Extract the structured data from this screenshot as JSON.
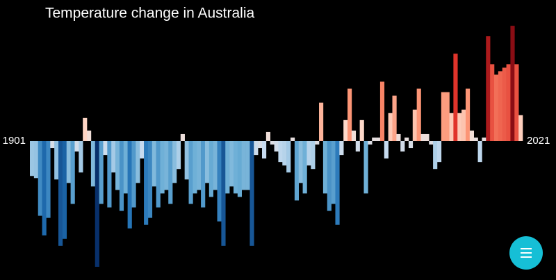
{
  "chart_data": {
    "type": "bar",
    "title": "Temperature change in Australia",
    "categories": [
      "1901",
      null,
      null,
      null,
      null,
      null,
      null,
      null,
      null,
      null,
      null,
      null,
      null,
      null,
      null,
      null,
      null,
      null,
      null,
      null,
      null,
      null,
      null,
      null,
      null,
      null,
      null,
      null,
      null,
      null,
      null,
      null,
      null,
      null,
      null,
      null,
      null,
      null,
      null,
      null,
      null,
      null,
      null,
      null,
      null,
      null,
      null,
      null,
      null,
      null,
      null,
      null,
      null,
      null,
      null,
      null,
      null,
      null,
      null,
      null,
      null,
      null,
      null,
      null,
      null,
      null,
      null,
      null,
      null,
      null,
      null,
      null,
      null,
      null,
      null,
      null,
      null,
      null,
      null,
      null,
      null,
      null,
      null,
      null,
      null,
      null,
      null,
      null,
      null,
      null,
      null,
      null,
      null,
      null,
      null,
      null,
      null,
      null,
      null,
      null,
      null,
      null,
      null,
      null,
      null,
      null,
      null,
      null,
      null,
      null,
      null,
      null,
      null,
      null,
      null,
      null,
      null,
      null,
      null,
      null,
      "2021"
    ],
    "values": [
      -0.5,
      -0.53,
      -1.07,
      -1.35,
      -1.1,
      -0.1,
      -0.55,
      -1.5,
      -1.4,
      -0.6,
      -0.9,
      -0.15,
      -0.45,
      0.33,
      0.15,
      -0.65,
      -1.8,
      -0.9,
      -0.2,
      -0.95,
      -0.45,
      -0.7,
      -1.0,
      -0.75,
      -1.25,
      -0.95,
      -0.6,
      -0.25,
      -1.2,
      -1.1,
      -0.65,
      -0.95,
      -0.75,
      -0.7,
      -0.9,
      -0.6,
      -0.4,
      0.1,
      -0.55,
      -0.9,
      -0.75,
      -0.7,
      -0.95,
      -0.6,
      -0.8,
      -0.7,
      -1.15,
      -1.5,
      -0.75,
      -0.65,
      -0.75,
      -0.8,
      -0.7,
      -0.7,
      -1.5,
      -0.2,
      -0.1,
      -0.25,
      0.13,
      -0.05,
      -0.15,
      -0.3,
      -0.35,
      -0.45,
      0.05,
      -0.85,
      -0.6,
      -0.75,
      -0.35,
      -0.4,
      -0.05,
      0.55,
      -0.75,
      -1.0,
      -0.9,
      -1.2,
      -0.2,
      0.3,
      0.75,
      0.15,
      -0.15,
      0.3,
      -0.75,
      -0.05,
      0.05,
      0.05,
      0.85,
      -0.25,
      0.4,
      0.65,
      0.1,
      -0.15,
      0.05,
      -0.1,
      0.45,
      0.75,
      0.1,
      0.1,
      -0.05,
      -0.4,
      -0.3,
      0.7,
      0.7,
      0.4,
      1.25,
      0.4,
      0.45,
      0.75,
      0.15,
      0.05,
      -0.3,
      0.05,
      1.5,
      1.1,
      0.95,
      1.0,
      1.05,
      1.1,
      1.65,
      1.1,
      0.37
    ],
    "color_scale": [
      "#08306b",
      "#2171b5",
      "#6baed6",
      "#c6dbef",
      "#fee0d2",
      "#fc9272",
      "#de2d26",
      "#67000d"
    ]
  }
}
